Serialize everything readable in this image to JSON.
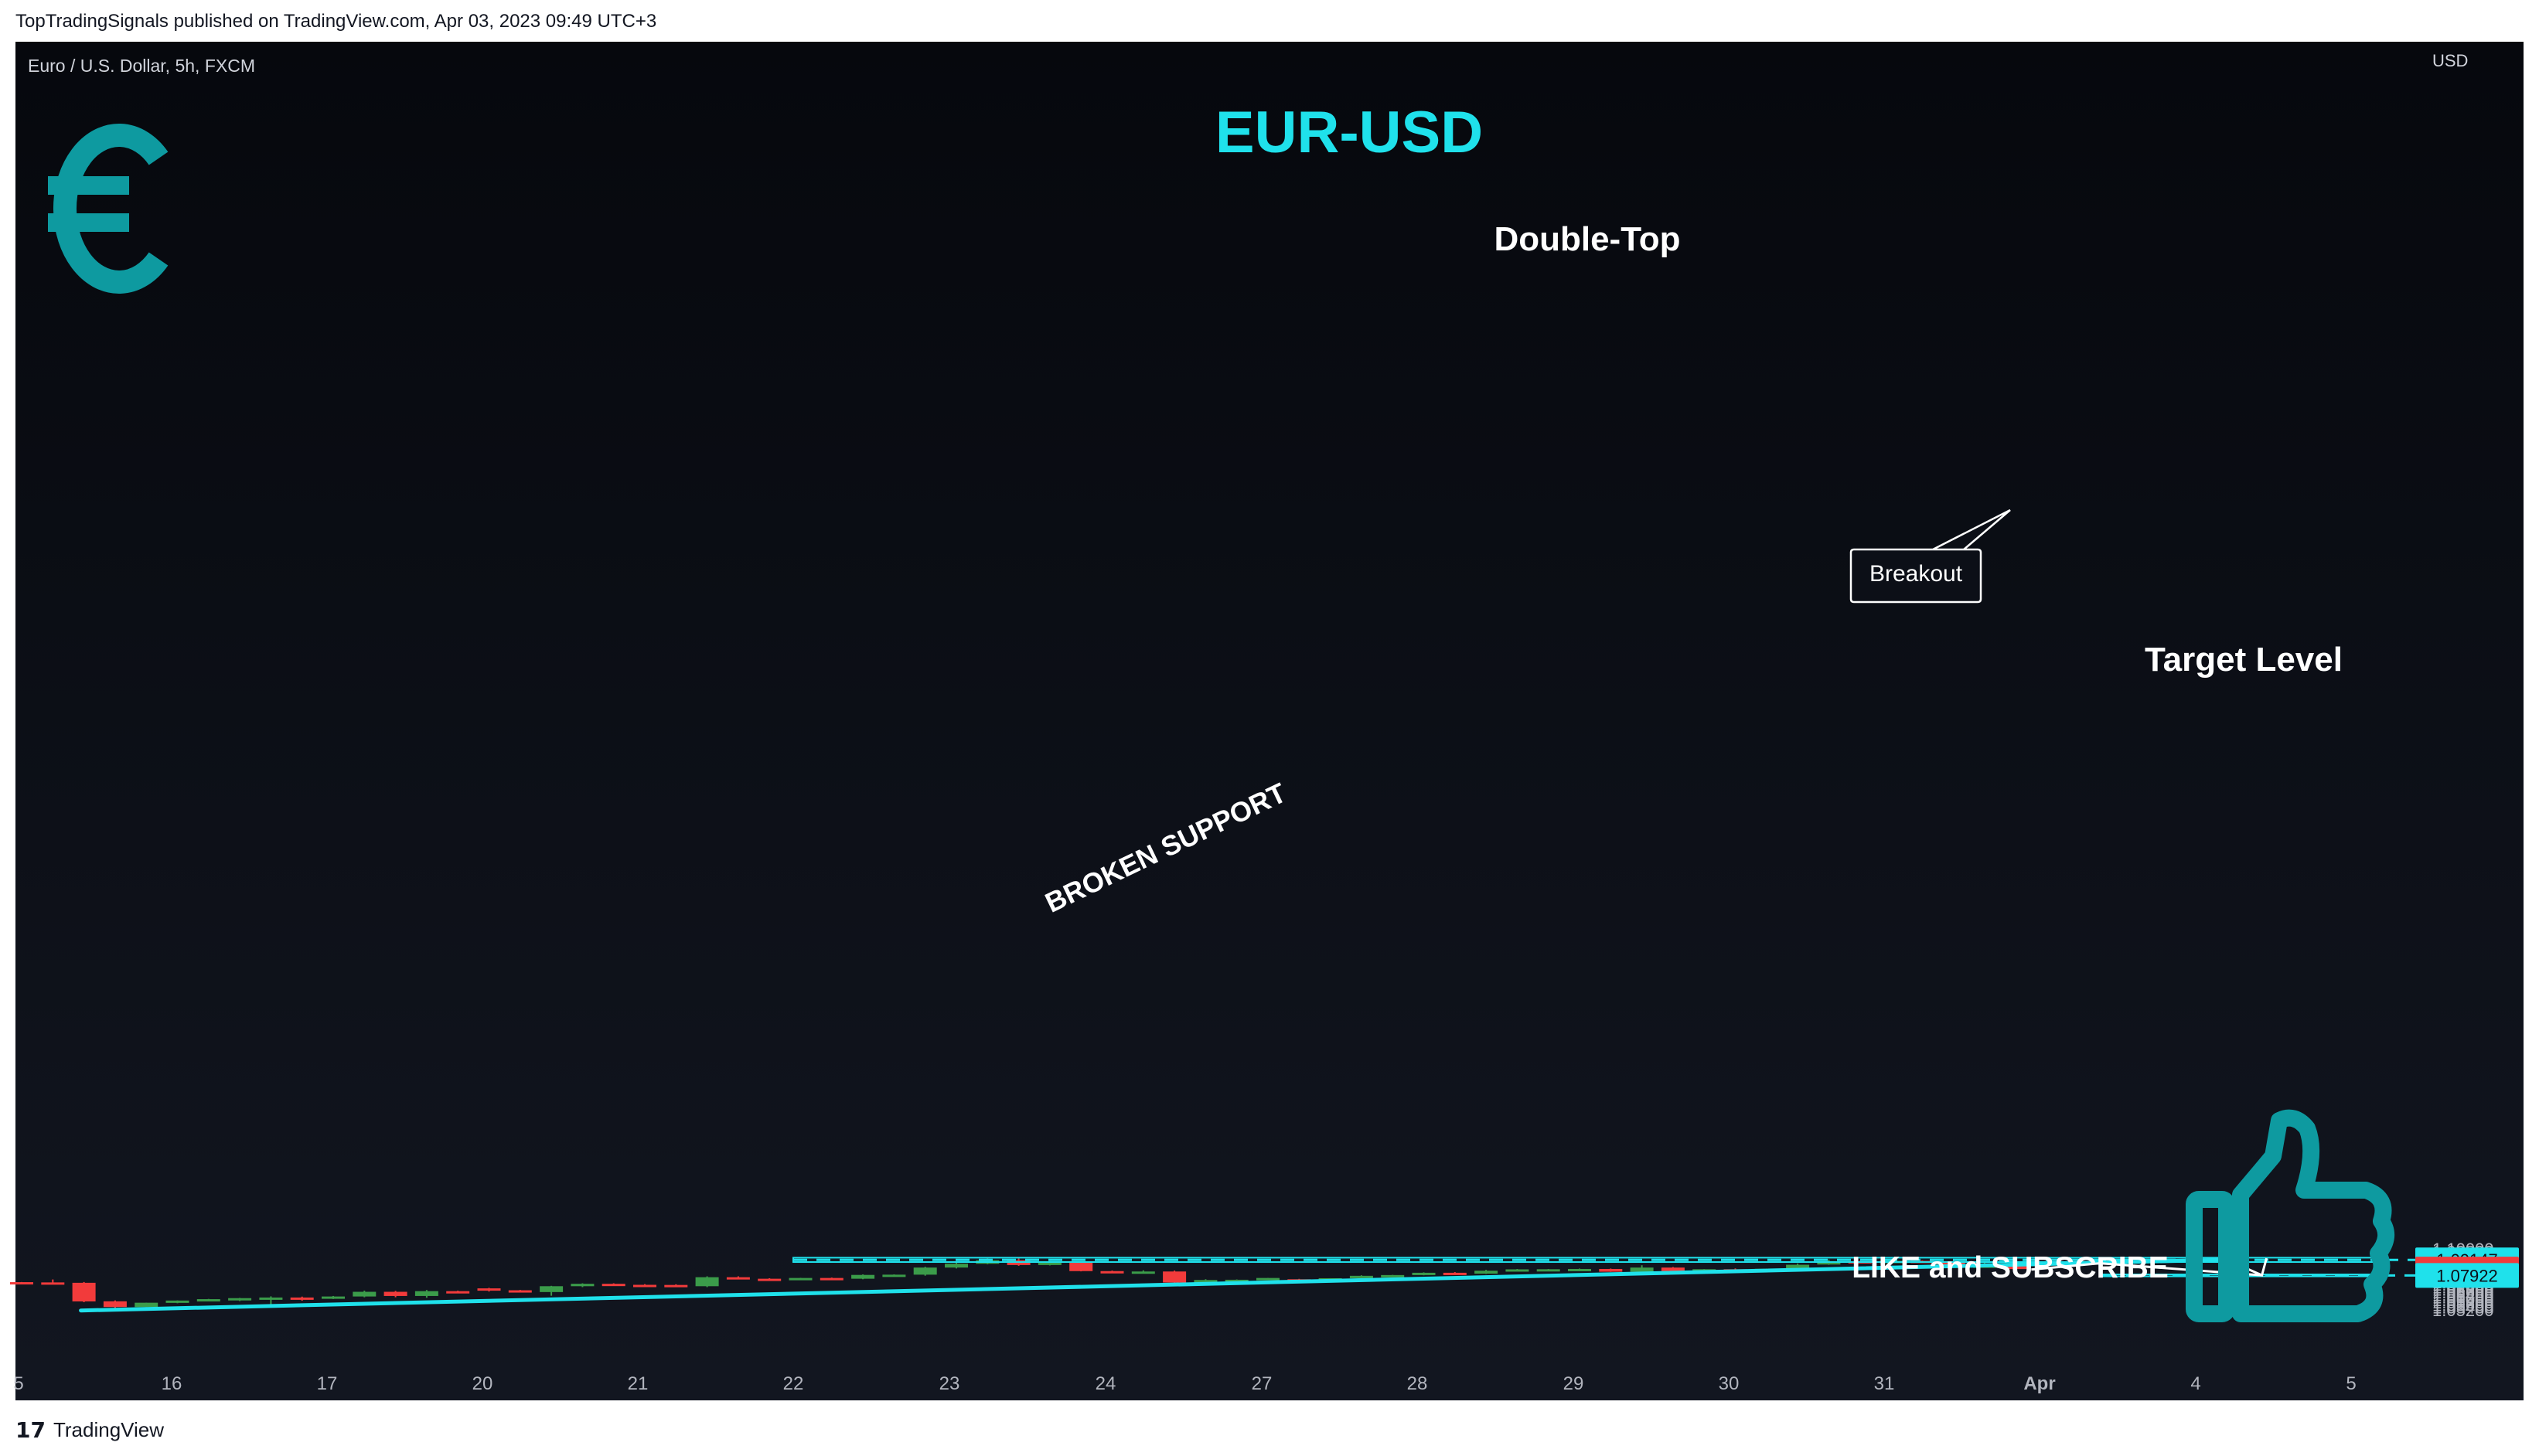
{
  "header": {
    "published": "TopTradingSignals published on TradingView.com, Apr 03, 2023 09:49 UTC+3"
  },
  "footer": {
    "logo": "17",
    "brand": "TradingView"
  },
  "colors": {
    "background": "#0c0f17",
    "up": "#3b9c4a",
    "down": "#f23b3b",
    "accent": "#1fe1eb",
    "euro": "#0e9aa0"
  },
  "icons": [
    "euro-sign-icon",
    "thumbs-up-icon",
    "tradingview-logo-icon"
  ],
  "chart_data": {
    "type": "candlestick",
    "symbol_label": "Euro / U.S. Dollar, 5h, FXCM",
    "title": "EUR-USD",
    "currency": "USD",
    "ylim": [
      1.0505,
      1.1005
    ],
    "y_ticks": [
      "1.10000",
      "1.09800",
      "1.09600",
      "1.09400",
      "1.09200",
      "1.09000",
      "1.08800",
      "1.08600",
      "1.08400",
      "1.08200",
      "1.08000",
      "1.07800",
      "1.07600",
      "1.07400",
      "1.07200",
      "1.07000",
      "1.06800",
      "1.06600",
      "1.06400",
      "1.06200",
      "1.06000",
      "1.05800",
      "1.05600",
      "1.05400",
      "1.05200"
    ],
    "x_ticks": [
      "5",
      "16",
      "17",
      "20",
      "21",
      "22",
      "23",
      "24",
      "27",
      "28",
      "29",
      "30",
      "31",
      "Apr",
      "4",
      "5"
    ],
    "candles": [
      {
        "o": 1.0739,
        "h": 1.074,
        "l": 1.0733,
        "c": 1.0734
      },
      {
        "o": 1.0737,
        "h": 1.076,
        "l": 1.073,
        "c": 1.0734
      },
      {
        "o": 1.0734,
        "h": 1.074,
        "l": 1.0581,
        "c": 1.0587
      },
      {
        "o": 1.0588,
        "h": 1.0595,
        "l": 1.0515,
        "c": 1.0543
      },
      {
        "o": 1.0543,
        "h": 1.0577,
        "l": 1.0543,
        "c": 1.0577
      },
      {
        "o": 1.0577,
        "h": 1.0595,
        "l": 1.0573,
        "c": 1.0594
      },
      {
        "o": 1.0594,
        "h": 1.0607,
        "l": 1.0588,
        "c": 1.0605
      },
      {
        "o": 1.0605,
        "h": 1.0615,
        "l": 1.059,
        "c": 1.0613
      },
      {
        "o": 1.0613,
        "h": 1.0627,
        "l": 1.0551,
        "c": 1.0618
      },
      {
        "o": 1.0618,
        "h": 1.0625,
        "l": 1.0593,
        "c": 1.0609
      },
      {
        "o": 1.0609,
        "h": 1.063,
        "l": 1.0606,
        "c": 1.0626
      },
      {
        "o": 1.0626,
        "h": 1.0672,
        "l": 1.062,
        "c": 1.0663
      },
      {
        "o": 1.0663,
        "h": 1.067,
        "l": 1.062,
        "c": 1.063
      },
      {
        "o": 1.063,
        "h": 1.0677,
        "l": 1.0616,
        "c": 1.0668
      },
      {
        "o": 1.0668,
        "h": 1.0672,
        "l": 1.066,
        "c": 1.0664
      },
      {
        "o": 1.069,
        "h": 1.0694,
        "l": 1.0665,
        "c": 1.0679
      },
      {
        "o": 1.0675,
        "h": 1.0678,
        "l": 1.066,
        "c": 1.0661
      },
      {
        "o": 1.0661,
        "h": 1.071,
        "l": 1.0632,
        "c": 1.0707
      },
      {
        "o": 1.0707,
        "h": 1.073,
        "l": 1.07,
        "c": 1.0726
      },
      {
        "o": 1.0726,
        "h": 1.073,
        "l": 1.0715,
        "c": 1.0718
      },
      {
        "o": 1.0718,
        "h": 1.0723,
        "l": 1.0716,
        "c": 1.0717
      },
      {
        "o": 1.0717,
        "h": 1.0722,
        "l": 1.0707,
        "c": 1.0707
      },
      {
        "o": 1.0707,
        "h": 1.0785,
        "l": 1.07,
        "c": 1.0778
      },
      {
        "o": 1.0778,
        "h": 1.0785,
        "l": 1.0765,
        "c": 1.0766
      },
      {
        "o": 1.0766,
        "h": 1.077,
        "l": 1.0758,
        "c": 1.0765
      },
      {
        "o": 1.0765,
        "h": 1.0773,
        "l": 1.0759,
        "c": 1.0772
      },
      {
        "o": 1.0772,
        "h": 1.0775,
        "l": 1.076,
        "c": 1.0766
      },
      {
        "o": 1.0766,
        "h": 1.08,
        "l": 1.0762,
        "c": 1.0796
      },
      {
        "o": 1.0796,
        "h": 1.08,
        "l": 1.0789,
        "c": 1.0798
      },
      {
        "o": 1.0798,
        "h": 1.086,
        "l": 1.079,
        "c": 1.0854
      },
      {
        "o": 1.0854,
        "h": 1.0893,
        "l": 1.0847,
        "c": 1.0884
      },
      {
        "o": 1.0884,
        "h": 1.0927,
        "l": 1.088,
        "c": 1.0912
      },
      {
        "o": 1.0912,
        "h": 1.0926,
        "l": 1.0868,
        "c": 1.0874
      },
      {
        "o": 1.0874,
        "h": 1.0905,
        "l": 1.0871,
        "c": 1.0895
      },
      {
        "o": 1.0895,
        "h": 1.0898,
        "l": 1.0824,
        "c": 1.0826
      },
      {
        "o": 1.0826,
        "h": 1.083,
        "l": 1.082,
        "c": 1.0822
      },
      {
        "o": 1.0823,
        "h": 1.0832,
        "l": 1.082,
        "c": 1.0823
      },
      {
        "o": 1.0823,
        "h": 1.083,
        "l": 1.0717,
        "c": 1.0736
      },
      {
        "o": 1.0736,
        "h": 1.0762,
        "l": 1.0725,
        "c": 1.0756
      },
      {
        "o": 1.0756,
        "h": 1.076,
        "l": 1.0752,
        "c": 1.0758
      },
      {
        "o": 1.0762,
        "h": 1.0772,
        "l": 1.0755,
        "c": 1.0772
      },
      {
        "o": 1.0762,
        "h": 1.0765,
        "l": 1.0752,
        "c": 1.076
      },
      {
        "o": 1.0762,
        "h": 1.077,
        "l": 1.0742,
        "c": 1.077
      },
      {
        "o": 1.077,
        "h": 1.0793,
        "l": 1.0768,
        "c": 1.0789
      },
      {
        "o": 1.0789,
        "h": 1.0796,
        "l": 1.0786,
        "c": 1.0795
      },
      {
        "o": 1.0795,
        "h": 1.0816,
        "l": 1.0793,
        "c": 1.0813
      },
      {
        "o": 1.0813,
        "h": 1.0818,
        "l": 1.0806,
        "c": 1.0806
      },
      {
        "o": 1.0806,
        "h": 1.0836,
        "l": 1.0804,
        "c": 1.0829
      },
      {
        "o": 1.0829,
        "h": 1.0843,
        "l": 1.0829,
        "c": 1.084
      },
      {
        "o": 1.084,
        "h": 1.0843,
        "l": 1.0837,
        "c": 1.0841
      },
      {
        "o": 1.0841,
        "h": 1.0846,
        "l": 1.0839,
        "c": 1.0843
      },
      {
        "o": 1.0843,
        "h": 1.0846,
        "l": 1.082,
        "c": 1.0821
      },
      {
        "o": 1.0821,
        "h": 1.0872,
        "l": 1.0818,
        "c": 1.0854
      },
      {
        "o": 1.0854,
        "h": 1.0858,
        "l": 1.0822,
        "c": 1.0826
      },
      {
        "o": 1.0826,
        "h": 1.0842,
        "l": 1.0825,
        "c": 1.0841
      },
      {
        "o": 1.0841,
        "h": 1.0847,
        "l": 1.0826,
        "c": 1.0829
      },
      {
        "o": 1.0829,
        "h": 1.0846,
        "l": 1.0825,
        "c": 1.0844
      },
      {
        "o": 1.0844,
        "h": 1.0885,
        "l": 1.084,
        "c": 1.0876
      },
      {
        "o": 1.0878,
        "h": 1.0917,
        "l": 1.0876,
        "c": 1.0904
      },
      {
        "o": 1.0904,
        "h": 1.0908,
        "l": 1.0902,
        "c": 1.0903
      },
      {
        "o": 1.0904,
        "h": 1.0917,
        "l": 1.0901,
        "c": 1.0907
      },
      {
        "o": 1.0907,
        "h": 1.091,
        "l": 1.0902,
        "c": 1.0904
      },
      {
        "o": 1.0904,
        "h": 1.0907,
        "l": 1.0865,
        "c": 1.0867
      },
      {
        "o": 1.0868,
        "h": 1.0901,
        "l": 1.0866,
        "c": 1.087
      },
      {
        "o": 1.0869,
        "h": 1.087,
        "l": 1.0836,
        "c": 1.0842
      }
    ],
    "support_line": {
      "label": "BROKEN SUPPORT",
      "p1": {
        "bar": 1.9,
        "price": 1.05155
      },
      "p2": {
        "bar": 70.6,
        "price": 1.09155
      }
    },
    "resistance_zone": {
      "top": 1.0932,
      "bottom": 1.08975,
      "label": "Double-Top",
      "level": "1.09147"
    },
    "target_zone": {
      "top": 1.08,
      "bottom": 1.07845,
      "label": "Target Level",
      "level": "1.07922"
    },
    "current_price": "1.08424",
    "projection": [
      {
        "bar": 64.5,
        "price": 1.0838
      },
      {
        "bar": 66.7,
        "price": 1.0888
      },
      {
        "bar": 71.9,
        "price": 1.07935
      }
    ],
    "callout": {
      "label": "Breakout"
    },
    "cta": "LIKE and SUBSCRIBE"
  }
}
